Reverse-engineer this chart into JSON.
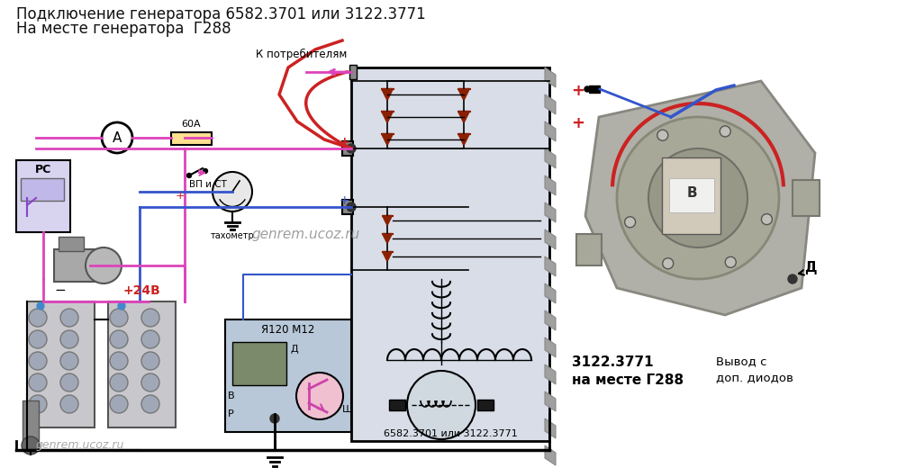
{
  "title_line1": "Подключение генератора 6582.3701 или 3122.3771",
  "title_line2": "На месте генератора  Г288",
  "background_color": "#ffffff",
  "watermark": "genrem.ucoz.ru",
  "watermark2": "genrem.ucoz.ru",
  "label_gen_bottom": "6582.3701 или 3122.3771",
  "label_3122": "3122.3771",
  "label_na_meste": "на месте Г288",
  "label_vyvod": "Вывод с",
  "label_dop": "доп. диодов",
  "label_d": "Д",
  "label_b": "В",
  "label_k_potrebitelyam": "К потребителям",
  "label_60a": "60А",
  "label_rc": "РС",
  "label_vp_ct": "ВП и СТ",
  "label_takhometr": "тахометр",
  "label_24v": "+24В",
  "label_ya120m12": "Я120 М12",
  "label_minus": "−",
  "title_fontsize": 13,
  "fig_width": 10.16,
  "fig_height": 5.2,
  "dpi": 100,
  "pink": "#dd44bb",
  "blue": "#3355cc",
  "red": "#cc2222",
  "dark": "#222222",
  "gray_bg": "#e0e0e0",
  "gen_box_color": "#d8dde8",
  "reg_box_color": "#b8c8d8"
}
